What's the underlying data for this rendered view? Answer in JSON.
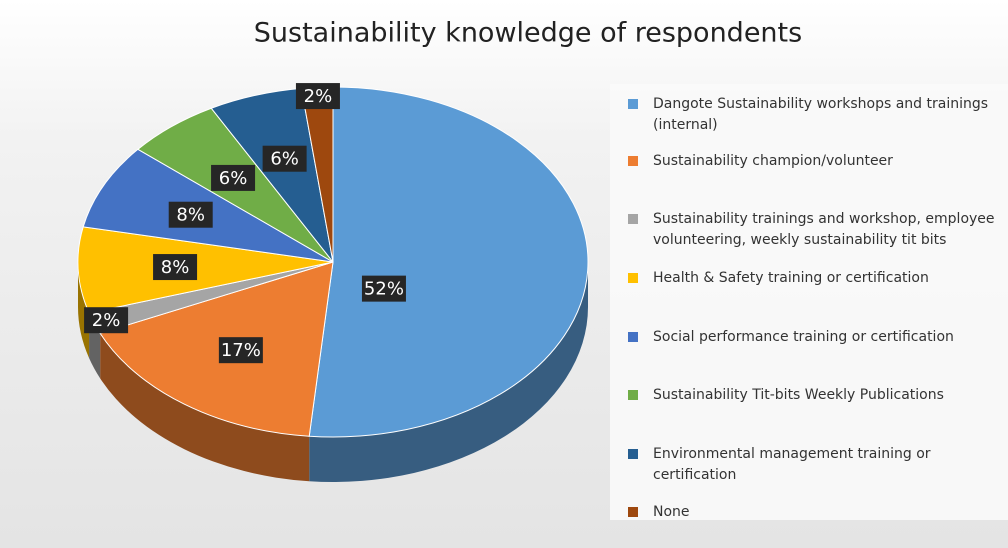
{
  "chart_data": {
    "type": "pie",
    "title": "Sustainability knowledge of respondents",
    "categories": [
      "Dangote Sustainability workshops and trainings (internal)",
      "Sustainability champion/volunteer",
      "Sustainability trainings and workshop, employee volunteering, weekly sustainability tit bits",
      "Health & Safety training or certification",
      "Social performance training or certification",
      "Sustainability Tit-bits Weekly Publications",
      "Environmental management training or certification",
      "None"
    ],
    "values": [
      52,
      17,
      2,
      8,
      8,
      6,
      6,
      2
    ],
    "value_labels": [
      "52%",
      "17%",
      "2%",
      "8%",
      "8%",
      "6%",
      "6%",
      "2%"
    ],
    "colors": [
      "#5b9bd5",
      "#ed7d31",
      "#a5a5a5",
      "#ffc000",
      "#4472c4",
      "#70ad47",
      "#255e91",
      "#9e480e"
    ],
    "legend": "right"
  }
}
